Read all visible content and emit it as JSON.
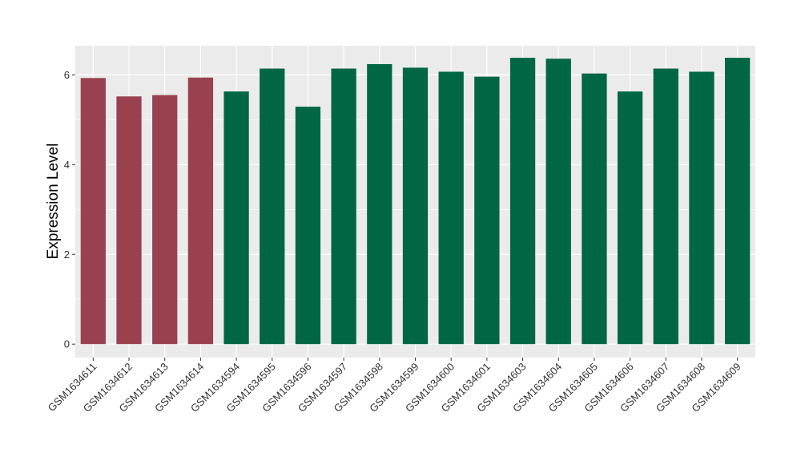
{
  "chart_data": {
    "type": "bar",
    "title": "",
    "xlabel": "",
    "ylabel": "Expression Level",
    "ylim": [
      -0.3,
      6.65
    ],
    "yticks": [
      0,
      2,
      4,
      6
    ],
    "ytick_labels": [
      "0",
      "2",
      "4",
      "6"
    ],
    "grid": true,
    "legend": "none",
    "categories": [
      "GSM1634611",
      "GSM1634612",
      "GSM1634613",
      "GSM1634614",
      "GSM1634594",
      "GSM1634595",
      "GSM1634596",
      "GSM1634597",
      "GSM1634598",
      "GSM1634599",
      "GSM1634600",
      "GSM1634601",
      "GSM1634603",
      "GSM1634604",
      "GSM1634605",
      "GSM1634606",
      "GSM1634607",
      "GSM1634608",
      "GSM1634609"
    ],
    "values": [
      5.93,
      5.52,
      5.55,
      5.94,
      5.63,
      6.14,
      5.29,
      6.14,
      6.24,
      6.16,
      6.07,
      5.96,
      6.38,
      6.36,
      6.03,
      5.63,
      6.14,
      6.07,
      6.38
    ],
    "groups": [
      0,
      0,
      0,
      0,
      1,
      1,
      1,
      1,
      1,
      1,
      1,
      1,
      1,
      1,
      1,
      1,
      1,
      1,
      1
    ],
    "group_colors": [
      "#9a4150",
      "#006643"
    ],
    "panel_color": "#ebebeb",
    "grid_color": "#ffffff"
  }
}
